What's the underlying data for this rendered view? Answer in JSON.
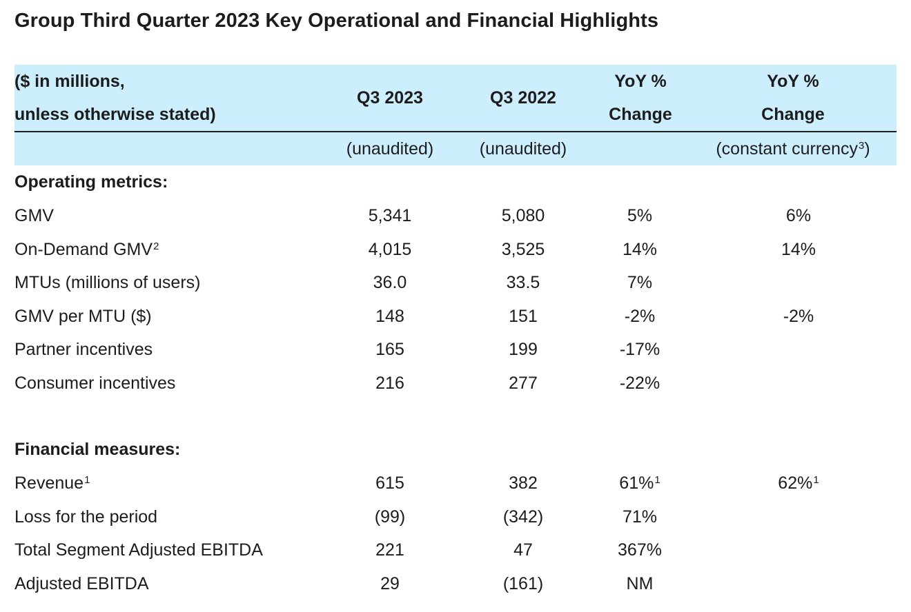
{
  "title": "Group Third Quarter 2023 Key Operational and Financial Highlights",
  "header": {
    "label_line1": "($ in millions,",
    "label_line2": "unless otherwise stated)",
    "col1": "Q3 2023",
    "col2": "Q3 2022",
    "col3_line1": "YoY %",
    "col3_line2": "Change",
    "col4_line1": "YoY %",
    "col4_line2": "Change",
    "sub_col1": "(unaudited)",
    "sub_col2": "(unaudited)",
    "sub_col4": "(constant currency",
    "sub_col4_sup": "3",
    "sub_col4_end": ")"
  },
  "colors": {
    "header_band": "#cdeefd",
    "text": "#1c1c1c"
  },
  "sections": [
    {
      "heading": "Operating metrics:",
      "rows": [
        {
          "label": "GMV",
          "label_sup": "",
          "q3_2023": "5,341",
          "q3_2022": "5,080",
          "yoy": "5%",
          "yoy_sup": "",
          "yoy_cc": "6%",
          "yoy_cc_sup": ""
        },
        {
          "label": "On-Demand GMV",
          "label_sup": "2",
          "q3_2023": "4,015",
          "q3_2022": "3,525",
          "yoy": "14%",
          "yoy_sup": "",
          "yoy_cc": "14%",
          "yoy_cc_sup": ""
        },
        {
          "label": "MTUs (millions of users)",
          "label_sup": "",
          "q3_2023": "36.0",
          "q3_2022": "33.5",
          "yoy": "7%",
          "yoy_sup": "",
          "yoy_cc": "",
          "yoy_cc_sup": ""
        },
        {
          "label": "GMV per MTU ($)",
          "label_sup": "",
          "q3_2023": "148",
          "q3_2022": "151",
          "yoy": "-2%",
          "yoy_sup": "",
          "yoy_cc": "-2%",
          "yoy_cc_sup": ""
        },
        {
          "label": "Partner incentives",
          "label_sup": "",
          "q3_2023": "165",
          "q3_2022": "199",
          "yoy": "-17%",
          "yoy_sup": "",
          "yoy_cc": "",
          "yoy_cc_sup": ""
        },
        {
          "label": "Consumer incentives",
          "label_sup": "",
          "q3_2023": "216",
          "q3_2022": "277",
          "yoy": "-22%",
          "yoy_sup": "",
          "yoy_cc": "",
          "yoy_cc_sup": ""
        }
      ]
    },
    {
      "heading": "Financial measures:",
      "rows": [
        {
          "label": "Revenue",
          "label_sup": "1",
          "q3_2023": "615",
          "q3_2022": "382",
          "yoy": "61%",
          "yoy_sup": "1",
          "yoy_cc": "62%",
          "yoy_cc_sup": "1"
        },
        {
          "label": "Loss for the period",
          "label_sup": "",
          "q3_2023": "(99)",
          "q3_2022": "(342)",
          "yoy": "71%",
          "yoy_sup": "",
          "yoy_cc": "",
          "yoy_cc_sup": ""
        },
        {
          "label": "Total Segment Adjusted EBITDA",
          "label_sup": "",
          "q3_2023": "221",
          "q3_2022": "47",
          "yoy": "367%",
          "yoy_sup": "",
          "yoy_cc": "",
          "yoy_cc_sup": ""
        },
        {
          "label": "Adjusted EBITDA",
          "label_sup": "",
          "q3_2023": "29",
          "q3_2022": "(161)",
          "yoy": "NM",
          "yoy_sup": "",
          "yoy_cc": "",
          "yoy_cc_sup": ""
        }
      ]
    }
  ]
}
